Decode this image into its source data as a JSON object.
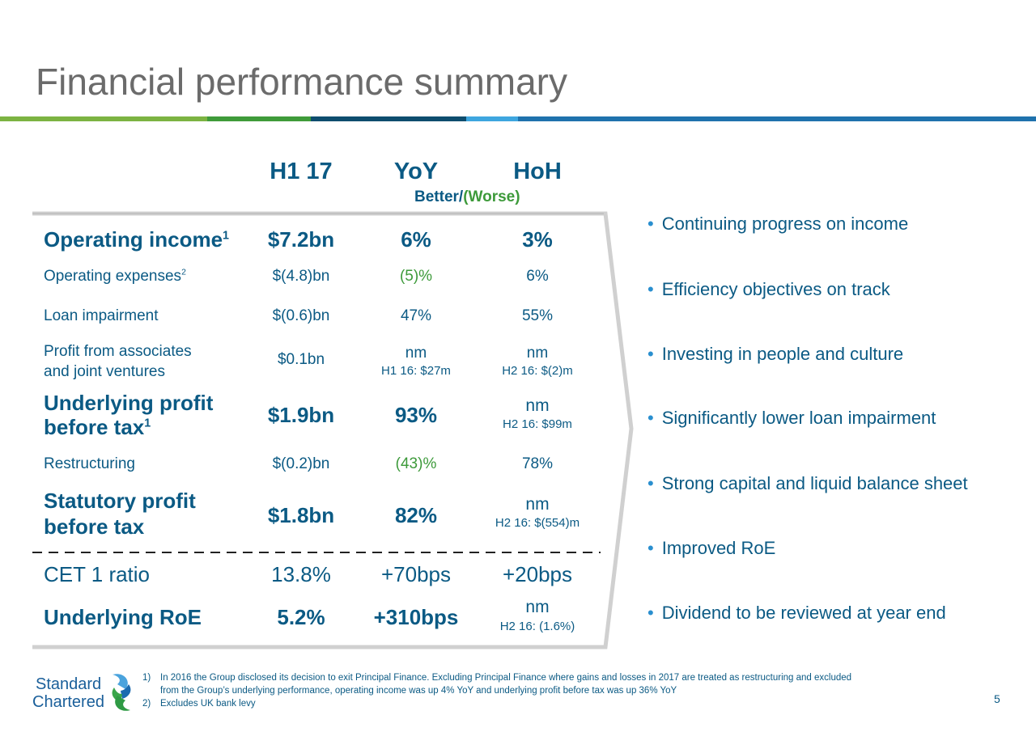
{
  "title": "Financial performance summary",
  "columns": {
    "c1": "H1 17",
    "c2": "YoY",
    "c3": "HoH",
    "sub_better": "Better/",
    "sub_worse": "(Worse)"
  },
  "rows": {
    "op_income": {
      "label": "Operating income",
      "sup": "1",
      "v1": "$7.2bn",
      "v2": "6%",
      "v3": "3%"
    },
    "op_exp": {
      "label": "Operating expenses",
      "sup": "2",
      "v1": "$(4.8)bn",
      "v2": "(5)%",
      "v3": "6%"
    },
    "loan_imp": {
      "label": "Loan impairment",
      "v1": "$(0.6)bn",
      "v2": "47%",
      "v3": "55%"
    },
    "assoc": {
      "label1": "Profit from associates",
      "label2": "and joint ventures",
      "v1": "$0.1bn",
      "v2": "nm",
      "v2_note": "H1 16: $27m",
      "v3": "nm",
      "v3_note": "H2 16: $(2)m"
    },
    "und_pbt": {
      "label1": "Underlying profit",
      "label2": "before tax",
      "sup": "1",
      "v1": "$1.9bn",
      "v2": "93%",
      "v3": "nm",
      "v3_note": "H2 16: $99m"
    },
    "restr": {
      "label": "Restructuring",
      "v1": "$(0.2)bn",
      "v2": "(43)%",
      "v3": "78%"
    },
    "stat_pbt": {
      "label1": "Statutory profit",
      "label2": "before tax",
      "v1": "$1.8bn",
      "v2": "82%",
      "v3": "nm",
      "v3_note": "H2 16: $(554)m"
    },
    "cet1": {
      "label": "CET 1 ratio",
      "v1": "13.8%",
      "v2": "+70bps",
      "v3": "+20bps"
    },
    "roe": {
      "label": "Underlying RoE",
      "v1": "5.2%",
      "v2": "+310bps",
      "v3": "nm",
      "v3_note": "H2 16: (1.6%)"
    }
  },
  "bullets": [
    "Continuing progress on income",
    "Efficiency objectives on track",
    "Investing in people and culture",
    "Significantly lower loan impairment",
    "Strong capital and liquid balance sheet",
    "Improved RoE",
    "Dividend to be reviewed at year end"
  ],
  "footnotes": {
    "n1": "1)",
    "f1a": "In 2016 the Group disclosed its decision to exit Principal Finance. Excluding Principal Finance where gains and losses in 2017 are treated as restructuring and excluded",
    "f1b": "from the Group’s underlying performance, operating income was up 4% YoY and underlying profit before tax was up 36% YoY",
    "n2": "2)",
    "f2": "Excludes UK bank levy"
  },
  "logo": {
    "line1": "Standard",
    "line2": "Chartered"
  },
  "page_number": "5",
  "colors": {
    "primary": "#0b5a84",
    "negative": "#3d9a3a",
    "title": "#6b6b6b",
    "accent_blue": "#2a8fcf",
    "green": "#6ab04c"
  }
}
